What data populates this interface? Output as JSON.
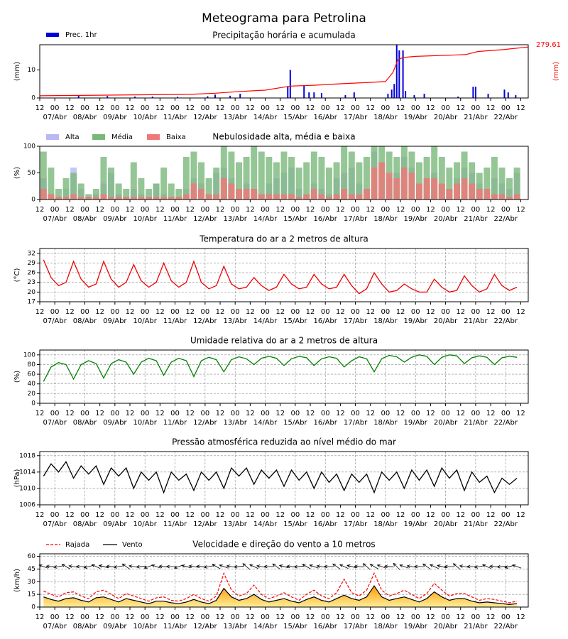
{
  "title": "Meteograma para Petrolina",
  "time": {
    "xlim": [
      0,
      390
    ],
    "xticks": [
      {
        "value": 0,
        "label": "12"
      },
      {
        "value": 12,
        "label": "00"
      },
      {
        "value": 24,
        "label": "12"
      },
      {
        "value": 36,
        "label": "00"
      },
      {
        "value": 48,
        "label": "12"
      },
      {
        "value": 60,
        "label": "00"
      },
      {
        "value": 72,
        "label": "12"
      },
      {
        "value": 84,
        "label": "00"
      },
      {
        "value": 96,
        "label": "12"
      },
      {
        "value": 108,
        "label": "00"
      },
      {
        "value": 120,
        "label": "12"
      },
      {
        "value": 132,
        "label": "00"
      },
      {
        "value": 144,
        "label": "12"
      },
      {
        "value": 156,
        "label": "00"
      },
      {
        "value": 168,
        "label": "12"
      },
      {
        "value": 180,
        "label": "00"
      },
      {
        "value": 192,
        "label": "12"
      },
      {
        "value": 204,
        "label": "00"
      },
      {
        "value": 216,
        "label": "12"
      },
      {
        "value": 228,
        "label": "00"
      },
      {
        "value": 240,
        "label": "12"
      },
      {
        "value": 252,
        "label": "00"
      },
      {
        "value": 264,
        "label": "12"
      },
      {
        "value": 276,
        "label": "00"
      },
      {
        "value": 288,
        "label": "12"
      },
      {
        "value": 300,
        "label": "00"
      },
      {
        "value": 312,
        "label": "12"
      },
      {
        "value": 324,
        "label": "00"
      },
      {
        "value": 336,
        "label": "12"
      },
      {
        "value": 348,
        "label": "00"
      },
      {
        "value": 360,
        "label": "12"
      },
      {
        "value": 372,
        "label": "00"
      },
      {
        "value": 384,
        "label": "12"
      }
    ],
    "date_labels": [
      {
        "value": 12,
        "label": "07/Abr"
      },
      {
        "value": 36,
        "label": "08/Abr"
      },
      {
        "value": 60,
        "label": "09/Abr"
      },
      {
        "value": 84,
        "label": "10/Abr"
      },
      {
        "value": 108,
        "label": "11/Abr"
      },
      {
        "value": 132,
        "label": "12/Abr"
      },
      {
        "value": 156,
        "label": "13/Abr"
      },
      {
        "value": 180,
        "label": "14/Abr"
      },
      {
        "value": 204,
        "label": "15/Abr"
      },
      {
        "value": 228,
        "label": "16/Abr"
      },
      {
        "value": 252,
        "label": "17/Abr"
      },
      {
        "value": 276,
        "label": "18/Abr"
      },
      {
        "value": 300,
        "label": "19/Abr"
      },
      {
        "value": 324,
        "label": "20/Abr"
      },
      {
        "value": 348,
        "label": "21/Abr"
      },
      {
        "value": 372,
        "label": "22/Abr"
      }
    ],
    "x": [
      3,
      9,
      15,
      21,
      27,
      33,
      39,
      45,
      51,
      57,
      63,
      69,
      75,
      81,
      87,
      93,
      99,
      105,
      111,
      117,
      123,
      129,
      135,
      141,
      147,
      153,
      159,
      165,
      171,
      177,
      183,
      189,
      195,
      201,
      207,
      213,
      219,
      225,
      231,
      237,
      243,
      249,
      255,
      261,
      267,
      273,
      279,
      285,
      291,
      297,
      303,
      309,
      315,
      321,
      327,
      333,
      339,
      345,
      351,
      357,
      363,
      369,
      375,
      381
    ]
  },
  "chart_data": [
    {
      "type": "precip",
      "title": "Precipitação horária e acumulada",
      "ylabel": "(mm)",
      "y2label": "(mm)",
      "ylim": [
        0,
        19
      ],
      "yticks": [
        0,
        10
      ],
      "y2lim": [
        0,
        292
      ],
      "end_label": 279.61,
      "series": [
        {
          "name": "Prec. 1hr",
          "color": "#0000dd",
          "x": [
            31,
            54,
            76,
            90,
            110,
            134,
            140,
            152,
            160,
            198,
            200,
            211,
            215,
            219,
            225,
            244,
            251,
            278,
            281,
            283,
            285,
            287,
            290,
            292,
            299,
            307,
            334,
            346,
            348,
            358,
            371,
            374,
            380
          ],
          "values": [
            1,
            0.7,
            0.5,
            0.5,
            0.4,
            0.6,
            1.2,
            0.8,
            1.5,
            4,
            10,
            4.5,
            2,
            2,
            1.8,
            1,
            2,
            1.5,
            3,
            5,
            19,
            17,
            17,
            2.5,
            1,
            1.5,
            0.5,
            4,
            4,
            1.5,
            3,
            2,
            1
          ]
        },
        {
          "color": "#ff0000",
          "axis": "y2",
          "x": [
            0,
            30,
            60,
            90,
            120,
            140,
            160,
            180,
            200,
            220,
            240,
            260,
            276,
            282,
            286,
            290,
            300,
            320,
            340,
            350,
            370,
            390
          ],
          "values": [
            12,
            14,
            16,
            18,
            20,
            26,
            36,
            43,
            65,
            70,
            78,
            84,
            90,
            140,
            210,
            222,
            228,
            233,
            238,
            255,
            265,
            279.61
          ]
        }
      ]
    },
    {
      "type": "cloud",
      "title": "Nebulosidade alta, média e baixa",
      "ylabel": "(%)",
      "ylim": [
        0,
        100
      ],
      "yticks": [
        0,
        50,
        100
      ],
      "series": [
        {
          "name": "Alta",
          "color": "#b8b8f4",
          "values": [
            40,
            10,
            5,
            20,
            60,
            20,
            5,
            10,
            30,
            50,
            10,
            5,
            20,
            10,
            5,
            30,
            10,
            5,
            5,
            20,
            40,
            30,
            10,
            50,
            60,
            40,
            20,
            30,
            20,
            10,
            30,
            40,
            50,
            60,
            20,
            10,
            30,
            20,
            10,
            40,
            50,
            60,
            30,
            20,
            90,
            70,
            40,
            50,
            80,
            60,
            30,
            40,
            50,
            30,
            20,
            40,
            60,
            50,
            30,
            20,
            40,
            30,
            20,
            50
          ]
        },
        {
          "name": "Média",
          "color": "#7ab87a",
          "values": [
            90,
            60,
            20,
            40,
            50,
            30,
            10,
            20,
            80,
            60,
            30,
            20,
            70,
            40,
            20,
            30,
            60,
            30,
            20,
            80,
            90,
            70,
            40,
            60,
            100,
            90,
            70,
            80,
            100,
            90,
            80,
            70,
            90,
            80,
            60,
            70,
            90,
            80,
            60,
            70,
            100,
            90,
            70,
            80,
            100,
            100,
            90,
            80,
            100,
            90,
            70,
            80,
            100,
            80,
            60,
            70,
            90,
            70,
            50,
            60,
            80,
            60,
            40,
            60
          ]
        },
        {
          "name": "Baixa",
          "color": "#f07878",
          "values": [
            20,
            10,
            5,
            5,
            10,
            5,
            5,
            5,
            10,
            5,
            5,
            5,
            5,
            5,
            5,
            5,
            5,
            5,
            5,
            10,
            30,
            20,
            10,
            10,
            40,
            30,
            20,
            20,
            20,
            10,
            10,
            10,
            10,
            10,
            5,
            10,
            20,
            10,
            5,
            10,
            20,
            10,
            10,
            20,
            60,
            70,
            50,
            40,
            60,
            50,
            30,
            40,
            40,
            30,
            20,
            30,
            40,
            30,
            20,
            20,
            10,
            10,
            5,
            10
          ]
        }
      ]
    },
    {
      "type": "line",
      "title": "Temperatura do ar a 2 metros de altura",
      "ylabel": "(°C)",
      "ylim": [
        17,
        33.5
      ],
      "yticks": [
        17,
        20,
        23,
        26,
        29,
        32
      ],
      "grid": true,
      "series": [
        {
          "color": "#ee0000",
          "values": [
            30,
            24.5,
            22,
            23,
            29.5,
            24,
            21.5,
            22.5,
            29.5,
            24,
            21.5,
            23,
            28.5,
            23.5,
            21.5,
            23,
            29,
            23.5,
            21.5,
            23,
            29.5,
            23,
            21,
            22,
            28,
            22.5,
            21,
            21.5,
            24.5,
            22,
            20.5,
            21.5,
            25.5,
            22.5,
            21,
            21.5,
            25.5,
            22.5,
            21,
            21.5,
            25.5,
            22,
            19.5,
            21,
            26,
            22.5,
            20,
            20.5,
            22.5,
            21,
            20,
            20,
            24,
            21.5,
            20,
            20.5,
            25,
            22,
            20,
            21,
            25.5,
            22,
            20.5,
            21.5
          ]
        }
      ]
    },
    {
      "type": "line",
      "title": "Umidade relativa do ar a 2 metros de altura",
      "ylabel": "(%)",
      "ylim": [
        0,
        110
      ],
      "yticks": [
        0,
        20,
        40,
        60,
        80,
        100
      ],
      "grid": true,
      "series": [
        {
          "color": "#008000",
          "values": [
            45,
            75,
            84,
            80,
            50,
            80,
            88,
            82,
            52,
            82,
            90,
            85,
            60,
            85,
            93,
            88,
            58,
            85,
            93,
            88,
            55,
            88,
            95,
            90,
            65,
            90,
            96,
            92,
            80,
            93,
            97,
            93,
            78,
            92,
            97,
            94,
            78,
            92,
            96,
            93,
            75,
            88,
            96,
            92,
            65,
            92,
            99,
            96,
            85,
            95,
            100,
            97,
            80,
            95,
            100,
            98,
            82,
            94,
            98,
            95,
            80,
            94,
            97,
            95
          ]
        }
      ]
    },
    {
      "type": "line",
      "title": "Pressão atmosférica reduzida ao nível médio do mar",
      "ylabel": "(hPa)",
      "ylim": [
        1006,
        1019
      ],
      "yticks": [
        1006,
        1010,
        1014,
        1018
      ],
      "grid": true,
      "series": [
        {
          "color": "#000000",
          "values": [
            1013,
            1016,
            1014,
            1016.5,
            1012.5,
            1015.5,
            1013.5,
            1015.5,
            1011,
            1015,
            1013,
            1015,
            1010,
            1014,
            1012,
            1014,
            1009,
            1014,
            1012,
            1013.5,
            1009.5,
            1014,
            1012,
            1014,
            1010,
            1015,
            1013,
            1015,
            1011,
            1014.5,
            1012.5,
            1014.5,
            1010.5,
            1014.5,
            1012,
            1014,
            1010,
            1014,
            1011.5,
            1013.5,
            1009.5,
            1013.5,
            1011.5,
            1013.5,
            1009,
            1014,
            1012,
            1014,
            1010,
            1014.5,
            1012,
            1014.5,
            1010.5,
            1015,
            1012.5,
            1014.5,
            1009.5,
            1014,
            1011.5,
            1013,
            1009,
            1012.5,
            1011,
            1012.5
          ]
        }
      ]
    },
    {
      "type": "wind",
      "title": "Velocidade e direção do vento a 10 metros",
      "ylabel": "(km/h)",
      "ylim": [
        0,
        63
      ],
      "yticks": [
        0,
        15,
        30,
        45,
        60
      ],
      "grid": true,
      "series": [
        {
          "name": "Rajada",
          "color": "#ff0000",
          "dashed": true,
          "values": [
            19,
            15,
            12,
            17,
            18,
            13,
            10,
            18,
            20,
            15,
            10,
            16,
            13,
            10,
            7,
            11,
            12,
            8,
            7,
            10,
            15,
            10,
            7,
            13,
            40,
            20,
            13,
            16,
            26,
            15,
            10,
            13,
            17,
            12,
            8,
            15,
            20,
            13,
            10,
            17,
            33,
            17,
            13,
            20,
            40,
            20,
            13,
            16,
            20,
            15,
            10,
            16,
            28,
            20,
            13,
            16,
            16,
            12,
            8,
            10,
            9,
            7,
            5,
            7
          ]
        },
        {
          "name": "Vento",
          "color": "#000000",
          "fill": true,
          "values": [
            12,
            9,
            7,
            10,
            11,
            8,
            6,
            11,
            12,
            9,
            6,
            10,
            8,
            6,
            4,
            7,
            7,
            5,
            4,
            6,
            9,
            6,
            4,
            8,
            22,
            12,
            8,
            10,
            15,
            9,
            6,
            8,
            10,
            7,
            5,
            9,
            12,
            8,
            6,
            10,
            14,
            10,
            8,
            12,
            25,
            12,
            8,
            10,
            12,
            9,
            6,
            10,
            18,
            12,
            8,
            10,
            10,
            7,
            5,
            6,
            5,
            4,
            3,
            4
          ]
        }
      ],
      "direction": [
        110,
        95,
        80,
        120,
        100,
        90,
        75,
        115,
        105,
        95,
        80,
        125,
        100,
        85,
        70,
        110,
        95,
        90,
        70,
        105,
        100,
        95,
        80,
        120,
        110,
        100,
        85,
        130,
        115,
        100,
        90,
        125,
        105,
        95,
        85,
        120,
        110,
        100,
        90,
        125,
        115,
        105,
        95,
        130,
        120,
        110,
        95,
        135,
        110,
        100,
        90,
        125,
        115,
        105,
        90,
        130,
        100,
        90,
        80,
        115,
        95,
        85,
        75,
        110
      ]
    }
  ]
}
